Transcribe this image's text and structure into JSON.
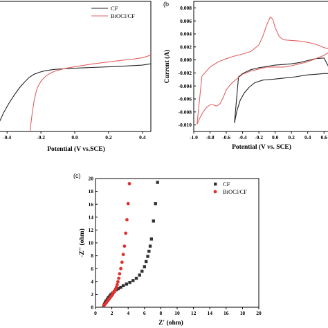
{
  "figure": {
    "panel_labels": {
      "b": "(b",
      "c": "(c)"
    }
  },
  "chart_data": [
    {
      "id": "a",
      "type": "line",
      "title": "",
      "xlabel": "Potential (V vs.SCE)",
      "ylabel": "",
      "xlim": [
        -0.45,
        0.45
      ],
      "ylim": [
        0,
        1
      ],
      "xticks": [
        -0.4,
        -0.2,
        0.0,
        0.2,
        0.4
      ],
      "xtick_labels": [
        "-0.4",
        "-0.2",
        "0.0",
        "0.2",
        "0.4"
      ],
      "yticks": [],
      "legend": {
        "placement": "top-left",
        "entries": [
          "CF",
          "BiOCl/CF"
        ]
      },
      "series": [
        {
          "name": "CF",
          "color": "#222222",
          "x": [
            -0.45,
            -0.42,
            -0.39,
            -0.36,
            -0.33,
            -0.3,
            -0.27,
            -0.24,
            -0.21,
            -0.18,
            -0.15,
            -0.12,
            -0.09,
            -0.05,
            0.0,
            0.1,
            0.2,
            0.3,
            0.4,
            0.45
          ],
          "y": [
            0.06,
            0.145,
            0.215,
            0.275,
            0.33,
            0.375,
            0.415,
            0.44,
            0.455,
            0.465,
            0.472,
            0.477,
            0.48,
            0.483,
            0.486,
            0.492,
            0.497,
            0.503,
            0.51,
            0.52
          ]
        },
        {
          "name": "BiOCl/CF",
          "color": "#e06060",
          "x": [
            -0.27,
            -0.26,
            -0.25,
            -0.24,
            -0.23,
            -0.22,
            -0.2,
            -0.18,
            -0.16,
            -0.14,
            -0.12,
            -0.1,
            -0.05,
            0.0,
            0.1,
            0.2,
            0.3,
            0.35,
            0.4,
            0.43,
            0.45
          ],
          "y": [
            -0.1,
            0.05,
            0.155,
            0.235,
            0.295,
            0.34,
            0.385,
            0.415,
            0.435,
            0.45,
            0.462,
            0.47,
            0.486,
            0.498,
            0.518,
            0.535,
            0.55,
            0.557,
            0.567,
            0.578,
            0.59
          ]
        }
      ]
    },
    {
      "id": "b",
      "type": "line",
      "title": "",
      "xlabel": "Potential (V vs. SCE)",
      "ylabel": "Current (A)",
      "xlim": [
        -1.0,
        0.7
      ],
      "ylim": [
        -0.011,
        0.009
      ],
      "xticks": [
        -1.0,
        -0.8,
        -0.6,
        -0.4,
        -0.2,
        0.0,
        0.2,
        0.4,
        0.6
      ],
      "xtick_labels": [
        "-1.0",
        "-0.8",
        "-0.6",
        "-0.4",
        "-0.2",
        "0.0",
        "0.2",
        "0.4",
        "0.6"
      ],
      "yticks": [
        -0.01,
        -0.008,
        -0.006,
        -0.004,
        -0.002,
        0.0,
        0.002,
        0.004,
        0.006,
        0.008
      ],
      "ytick_labels": [
        "-0.010",
        "-0.008",
        "-0.006",
        "-0.004",
        "-0.002",
        "0.000",
        "0.002",
        "0.004",
        "0.006",
        "0.008"
      ],
      "series": [
        {
          "name": "",
          "color": "#222222",
          "x": [
            -0.5,
            -0.47,
            -0.43,
            -0.38,
            -0.32,
            -0.25,
            -0.15,
            -0.05,
            0.1,
            0.25,
            0.4,
            0.5,
            0.6,
            0.66,
            0.7,
            0.6,
            0.5,
            0.4,
            0.3,
            0.2,
            0.1,
            0.0,
            -0.1,
            -0.2,
            -0.3,
            -0.4,
            -0.45,
            -0.5
          ],
          "y": [
            -0.0097,
            -0.0078,
            -0.0062,
            -0.0051,
            -0.0042,
            -0.0035,
            -0.0031,
            -0.003,
            -0.0028,
            -0.0026,
            -0.0023,
            -0.0022,
            -0.0021,
            -0.0021,
            -0.0021,
            0.0003,
            0.0002,
            -0.0001,
            -0.0004,
            -0.0006,
            -0.0007,
            -0.0008,
            -0.001,
            -0.0012,
            -0.0015,
            -0.0021,
            -0.0026,
            -0.0097
          ]
        },
        {
          "name": "",
          "color": "#e06060",
          "x": [
            -0.96,
            -0.92,
            -0.88,
            -0.84,
            -0.8,
            -0.76,
            -0.72,
            -0.68,
            -0.64,
            -0.6,
            -0.55,
            -0.5,
            -0.45,
            -0.4,
            -0.3,
            -0.2,
            -0.1,
            0.0,
            0.1,
            0.2,
            0.3,
            0.4,
            0.5,
            0.6,
            0.7,
            0.6,
            0.5,
            0.4,
            0.3,
            0.2,
            0.1,
            0.05,
            0.0,
            -0.03,
            -0.06,
            -0.1,
            -0.15,
            -0.2,
            -0.3,
            -0.4,
            -0.5,
            -0.6,
            -0.7,
            -0.8,
            -0.9,
            -0.96
          ],
          "y": [
            -0.0099,
            -0.0088,
            -0.0079,
            -0.0073,
            -0.0069,
            -0.0069,
            -0.0071,
            -0.0068,
            -0.0058,
            -0.0046,
            -0.0038,
            -0.0032,
            -0.0027,
            -0.0022,
            -0.0017,
            -0.0014,
            -0.0011,
            -0.0011,
            -0.0011,
            -0.0009,
            -0.0006,
            -0.0003,
            0.0002,
            0.0007,
            0.0015,
            0.0019,
            0.0024,
            0.0027,
            0.0029,
            0.003,
            0.0031,
            0.0036,
            0.005,
            0.0063,
            0.0066,
            0.0055,
            0.0037,
            0.0023,
            0.0013,
            0.0009,
            0.0006,
            0.0002,
            -0.0003,
            -0.0011,
            -0.0025,
            -0.0099
          ]
        }
      ]
    },
    {
      "id": "c",
      "type": "scatter",
      "title": "",
      "xlabel": "Z′ (ohm)",
      "ylabel": "-Z′′ (ohm)",
      "xlim": [
        0,
        20
      ],
      "ylim": [
        0,
        20
      ],
      "xticks": [
        0,
        2,
        4,
        6,
        8,
        10,
        12,
        14,
        16,
        18,
        20
      ],
      "xtick_labels": [
        "0",
        "2",
        "4",
        "6",
        "8",
        "10",
        "12",
        "14",
        "16",
        "18",
        "20"
      ],
      "yticks": [
        0,
        2,
        4,
        6,
        8,
        10,
        12,
        14,
        16,
        18,
        20
      ],
      "ytick_labels": [
        "0",
        "2",
        "4",
        "6",
        "8",
        "10",
        "12",
        "14",
        "16",
        "18",
        "20"
      ],
      "legend": {
        "placement": "top-right",
        "entries": [
          "CF",
          "BiOCl/CF"
        ]
      },
      "series": [
        {
          "name": "CF",
          "color": "#333333",
          "marker": "square",
          "x": [
            1.0,
            1.1,
            1.2,
            1.3,
            1.45,
            1.6,
            1.75,
            1.9,
            2.1,
            2.3,
            2.55,
            2.8,
            3.1,
            3.4,
            3.8,
            4.2,
            4.6,
            5.0,
            5.4,
            5.7,
            6.0,
            6.2,
            6.4,
            6.55,
            6.7,
            6.85,
            7.1,
            7.35,
            7.6
          ],
          "y": [
            0.2,
            0.5,
            0.75,
            1.0,
            1.25,
            1.5,
            1.75,
            2.0,
            2.2,
            2.45,
            2.7,
            2.9,
            3.1,
            3.35,
            3.6,
            3.85,
            4.15,
            4.5,
            5.0,
            5.6,
            6.3,
            7.1,
            7.9,
            8.7,
            9.5,
            10.6,
            13.4,
            16.1,
            19.4
          ]
        },
        {
          "name": "BiOCl/CF",
          "color": "#e03030",
          "marker": "circle",
          "x": [
            1.05,
            1.2,
            1.35,
            1.5,
            1.65,
            1.8,
            1.95,
            2.1,
            2.2,
            2.3,
            2.45,
            2.55,
            2.65,
            2.75,
            2.85,
            2.95,
            3.1,
            3.25,
            3.4,
            3.55,
            3.7,
            3.85,
            4.0,
            4.15
          ],
          "y": [
            0.3,
            0.5,
            0.75,
            1.0,
            1.25,
            1.5,
            1.75,
            2.0,
            2.25,
            2.5,
            2.8,
            3.1,
            3.5,
            3.95,
            4.5,
            5.2,
            6.0,
            7.0,
            8.2,
            9.5,
            11.5,
            13.6,
            16.1,
            19.2
          ]
        }
      ]
    }
  ]
}
